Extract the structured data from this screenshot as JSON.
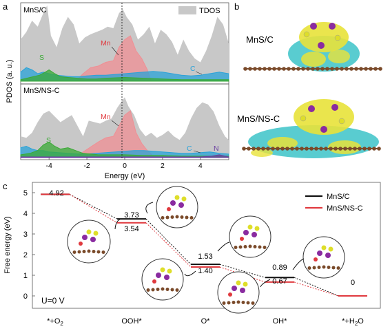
{
  "chart_data": [
    {
      "panel": "a",
      "type": "area",
      "ylabel": "PDOS (a. u.)",
      "xlabel": "Energy (eV)",
      "xlim": [
        -5.5,
        5.5
      ],
      "xticks": [
        -4,
        -2,
        0,
        2,
        4
      ],
      "legend": "TDOS",
      "fermi_line_x": 0,
      "subplots": [
        {
          "title": "MnS/C",
          "series": [
            {
              "name": "TDOS",
              "color": "#c8c8c8",
              "x": [
                -5.5,
                -5.2,
                -4.9,
                -4.6,
                -4.3,
                -4.1,
                -3.9,
                -3.6,
                -3.3,
                -3.0,
                -2.7,
                -2.4,
                -2.1,
                -1.8,
                -1.5,
                -1.2,
                -0.9,
                -0.6,
                -0.3,
                -0.1,
                0.1,
                0.4,
                0.7,
                1.0,
                1.3,
                1.6,
                1.9,
                2.2,
                2.5,
                2.8,
                3.1,
                3.4,
                3.7,
                4.0,
                4.3,
                4.6,
                4.9,
                5.2,
                5.5
              ],
              "y": [
                0.55,
                0.65,
                0.8,
                0.72,
                0.9,
                1.0,
                0.6,
                0.45,
                0.7,
                0.85,
                0.75,
                0.5,
                0.58,
                0.62,
                0.65,
                0.68,
                0.72,
                0.7,
                0.9,
                0.95,
                0.85,
                0.75,
                0.55,
                0.62,
                0.72,
                0.5,
                0.68,
                0.62,
                0.52,
                0.35,
                0.55,
                0.4,
                0.3,
                0.25,
                0.4,
                0.6,
                0.85,
                0.75,
                0.5
              ]
            },
            {
              "name": "Mn",
              "color": "#f08f94",
              "x": [
                -2.6,
                -2.2,
                -1.8,
                -1.4,
                -1.0,
                -0.6,
                -0.3,
                0,
                0.3,
                0.6,
                0.9,
                1.2,
                1.4
              ],
              "y": [
                0,
                0.1,
                0.18,
                0.2,
                0.25,
                0.27,
                0.45,
                0.55,
                0.6,
                0.4,
                0.3,
                0.15,
                0
              ]
            },
            {
              "name": "S",
              "color": "#3aaa35",
              "x": [
                -5.5,
                -5.0,
                -4.5,
                -4.2,
                -4.0,
                -3.7,
                -3.4,
                -3.0,
                -2.5,
                -2.0,
                -1.5,
                -1.0,
                0,
                1.0,
                2.0,
                3.0,
                4.0,
                5.5
              ],
              "y": [
                0.02,
                0.05,
                0.08,
                0.12,
                0.15,
                0.1,
                0.06,
                0.05,
                0.04,
                0.03,
                0.03,
                0.04,
                0.05,
                0.04,
                0.03,
                0.02,
                0.02,
                0.02
              ]
            },
            {
              "name": "C",
              "color": "#2aa3d8",
              "x": [
                -5.5,
                -5.2,
                -4.9,
                -4.6,
                -4.3,
                -4.0,
                -3.6,
                -3.2,
                -2.8,
                -2.4,
                -2.0,
                -1.5,
                -1.0,
                -0.5,
                0,
                0.5,
                1.0,
                1.5,
                2.0,
                2.5,
                3.0,
                3.5,
                4.0,
                4.5,
                5.0,
                5.5
              ],
              "y": [
                0.12,
                0.18,
                0.15,
                0.1,
                0.12,
                0.1,
                0.08,
                0.07,
                0.06,
                0.06,
                0.07,
                0.08,
                0.08,
                0.09,
                0.1,
                0.11,
                0.12,
                0.13,
                0.12,
                0.1,
                0.08,
                0.07,
                0.08,
                0.1,
                0.12,
                0.1
              ]
            }
          ]
        },
        {
          "title": "MnS/NS-C",
          "series": [
            {
              "name": "TDOS",
              "color": "#c8c8c8",
              "x": [
                -5.5,
                -5.2,
                -4.9,
                -4.6,
                -4.3,
                -4.0,
                -3.7,
                -3.4,
                -3.1,
                -2.8,
                -2.5,
                -2.2,
                -1.9,
                -1.6,
                -1.3,
                -1.0,
                -0.7,
                -0.4,
                -0.2,
                0,
                0.2,
                0.5,
                0.8,
                1.1,
                1.4,
                1.7,
                2.0,
                2.3,
                2.6,
                2.9,
                3.2,
                3.5,
                3.8,
                4.1,
                4.4,
                4.7,
                5.0,
                5.3,
                5.5
              ],
              "y": [
                0.3,
                0.28,
                0.35,
                0.5,
                0.62,
                0.66,
                0.58,
                0.5,
                0.55,
                0.6,
                0.45,
                0.3,
                0.52,
                0.5,
                0.48,
                0.52,
                0.55,
                0.7,
                0.78,
                0.85,
                0.72,
                0.6,
                0.4,
                0.3,
                0.35,
                0.28,
                0.32,
                0.38,
                0.3,
                0.25,
                0.35,
                0.55,
                0.7,
                0.78,
                0.75,
                0.65,
                0.45,
                0.3,
                0.25
              ]
            },
            {
              "name": "Mn",
              "color": "#f08f94",
              "x": [
                -2.6,
                -2.2,
                -1.8,
                -1.4,
                -1.0,
                -0.6,
                -0.3,
                0,
                0.3,
                0.6,
                0.9,
                1.2,
                1.6
              ],
              "y": [
                0,
                0.08,
                0.15,
                0.22,
                0.28,
                0.3,
                0.45,
                0.6,
                0.66,
                0.35,
                0.2,
                0.1,
                0
              ]
            },
            {
              "name": "S",
              "color": "#3aaa35",
              "x": [
                -5.5,
                -5.0,
                -4.6,
                -4.3,
                -4.0,
                -3.7,
                -3.4,
                -3.0,
                -2.6,
                -2.2,
                -1.8,
                -1.4,
                -1.0,
                0,
                1.0,
                2.0,
                3.0,
                4.0,
                5.5
              ],
              "y": [
                0.04,
                0.06,
                0.1,
                0.18,
                0.22,
                0.16,
                0.12,
                0.14,
                0.1,
                0.06,
                0.05,
                0.04,
                0.04,
                0.04,
                0.03,
                0.03,
                0.02,
                0.02,
                0.02
              ]
            },
            {
              "name": "C",
              "color": "#2aa3d8",
              "x": [
                -5.5,
                -5.2,
                -4.9,
                -4.6,
                -4.3,
                -4.0,
                -3.5,
                -3.0,
                -2.5,
                -2.0,
                -1.5,
                -1.0,
                -0.5,
                0,
                0.5,
                1.0,
                1.5,
                2.0,
                2.5,
                3.0,
                3.5,
                4.0,
                4.5,
                5.0,
                5.5
              ],
              "y": [
                0.14,
                0.16,
                0.12,
                0.1,
                0.1,
                0.08,
                0.07,
                0.06,
                0.05,
                0.05,
                0.06,
                0.07,
                0.08,
                0.09,
                0.1,
                0.1,
                0.09,
                0.08,
                0.07,
                0.06,
                0.06,
                0.07,
                0.08,
                0.06,
                0.05
              ]
            },
            {
              "name": "N",
              "color": "#6a3ea1",
              "x": [
                -5.5,
                -4.0,
                -2.0,
                0,
                2.0,
                4.0,
                4.6,
                5.0,
                5.3,
                5.5
              ],
              "y": [
                0.01,
                0.01,
                0.01,
                0.01,
                0.01,
                0.01,
                0.02,
                0.04,
                0.02,
                0.01
              ]
            }
          ]
        }
      ]
    },
    {
      "panel": "c",
      "type": "line",
      "ylabel": "Free energy (eV)",
      "ylim": [
        -0.6,
        5.5
      ],
      "yticks": [
        0,
        1,
        2,
        3,
        4,
        5
      ],
      "categories": [
        "*+O2",
        "OOH*",
        "O*",
        "OH*",
        "*+H2O"
      ],
      "annotation": "U=0 V",
      "legend_position": "top-right",
      "series": [
        {
          "name": "MnS/C",
          "color": "#111111",
          "values": [
            4.92,
            3.73,
            1.53,
            0.89,
            0
          ]
        },
        {
          "name": "MnS/NS-C",
          "color": "#e0393e",
          "values": [
            4.92,
            3.54,
            1.4,
            0.67,
            0
          ]
        }
      ]
    }
  ],
  "labels": {
    "panel_a": "a",
    "panel_b": "b",
    "panel_c": "c",
    "sub_top": "MnS/C",
    "sub_bottom": "MnS/NS-C",
    "tdos": "TDOS",
    "a_ylabel": "PDOS (a. u.)",
    "a_xlabel": "Energy (eV)",
    "mn_top": "Mn",
    "s_top": "S",
    "c_top": "C",
    "mn_bot": "Mn",
    "s_bot": "S",
    "c_bot": "C",
    "n_bot": "N",
    "b_top": "MnS/C",
    "b_bot": "MnS/NS-C",
    "c_ylabel": "Free energy (eV)",
    "u_label": "U=0 V",
    "cat_1_main": "*+O",
    "cat_1_sub": "2",
    "cat_2": "OOH*",
    "cat_3": "O*",
    "cat_4": "OH*",
    "cat_5_main": "*+H",
    "cat_5_sub": "2",
    "cat_5_tail": "O",
    "val_1": "4.92",
    "val_2_top": "3.73",
    "val_2_bot": "3.54",
    "val_3_top": "1.53",
    "val_3_bot": "1.40",
    "val_4_top": "0.89",
    "val_4_bot": "0.67",
    "val_5": "0",
    "legend_1": "MnS/C",
    "legend_2": "MnS/NS-C"
  },
  "colors": {
    "tdos": "#c8c8c8",
    "mn": "#f08f94",
    "s": "#3aaa35",
    "c": "#2aa3d8",
    "n": "#6a3ea1",
    "black": "#111111",
    "red": "#e0393e",
    "iso_yellow": "#e8e23a",
    "iso_cyan": "#3cc3c8",
    "carbon": "#7a4a2a",
    "mn_atom": "#8a2ba0",
    "s_atom": "#dede2a"
  }
}
